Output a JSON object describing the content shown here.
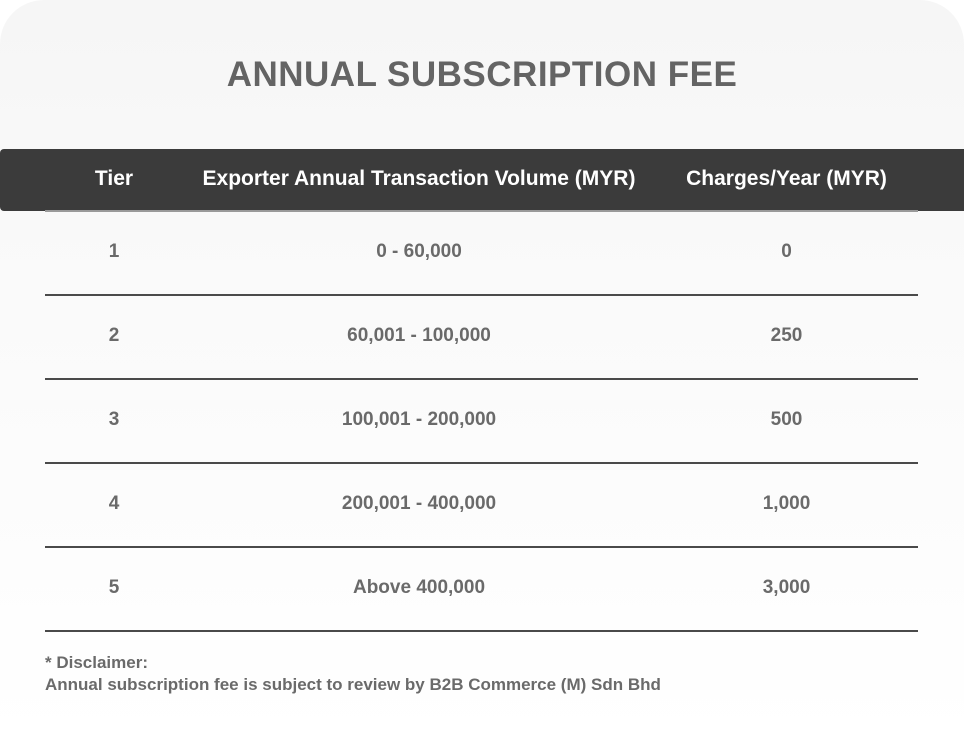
{
  "title": "ANNUAL SUBSCRIPTION FEE",
  "table": {
    "headers": {
      "tier": "Tier",
      "volume": "Exporter Annual Transaction Volume (MYR)",
      "charges": "Charges/Year (MYR)"
    },
    "rows": [
      {
        "tier": "1",
        "volume": "0 - 60,000",
        "charges": "0"
      },
      {
        "tier": "2",
        "volume": "60,001 - 100,000",
        "charges": "250"
      },
      {
        "tier": "3",
        "volume": "100,001 - 200,000",
        "charges": "500"
      },
      {
        "tier": "4",
        "volume": "200,001 - 400,000",
        "charges": "1,000"
      },
      {
        "tier": "5",
        "volume": "Above 400,000",
        "charges": "3,000"
      }
    ]
  },
  "disclaimer": {
    "heading": "* Disclaimer:",
    "text": "Annual subscription fee is subject to review by B2B Commerce (M) Sdn Bhd"
  },
  "colors": {
    "header_background": "#3b3b3b",
    "title_text": "#646464",
    "body_text": "#6a6a6a"
  }
}
